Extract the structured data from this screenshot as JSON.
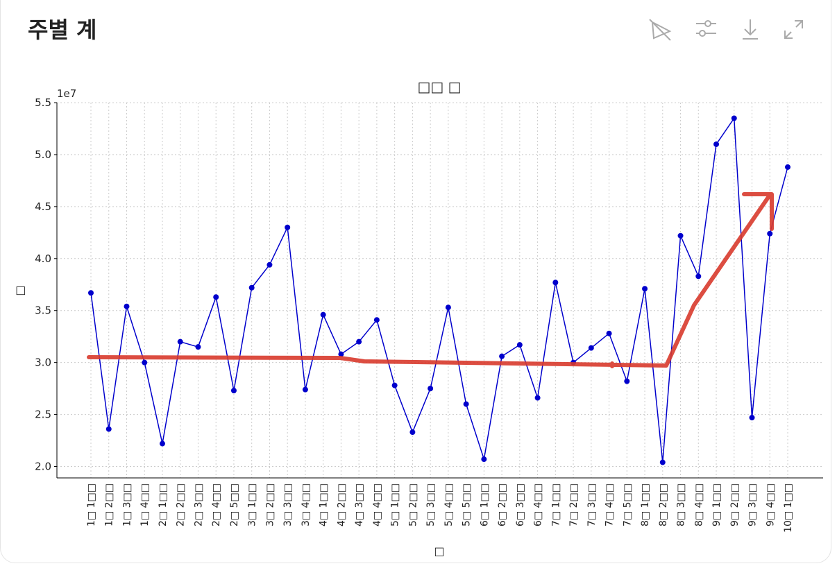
{
  "header": {
    "title": "주별 계"
  },
  "chart_data": {
    "type": "line",
    "title": "□□ □",
    "xlabel": "□",
    "ylabel": "□",
    "y_offset_text": "1e7",
    "categories": [
      "1□ 1□□",
      "1□ 2□□",
      "1□ 3□□",
      "1□ 4□□",
      "2□ 1□□",
      "2□ 2□□",
      "2□ 3□□",
      "2□ 4□□",
      "2□ 5□□",
      "3□ 1□□",
      "3□ 2□□",
      "3□ 3□□",
      "3□ 4□□",
      "4□ 1□□",
      "4□ 2□□",
      "4□ 3□□",
      "4□ 4□□",
      "5□ 1□□",
      "5□ 2□□",
      "5□ 3□□",
      "5□ 4□□",
      "5□ 5□□",
      "6□ 1□□",
      "6□ 2□□",
      "6□ 3□□",
      "6□ 4□□",
      "7□ 1□□",
      "7□ 2□□",
      "7□ 3□□",
      "7□ 4□□",
      "7□ 5□□",
      "8□ 1□□",
      "8□ 2□□",
      "8□ 3□□",
      "8□ 4□□",
      "9□ 1□□",
      "9□ 2□□",
      "9□ 3□□",
      "9□ 4□□",
      "10□ 1□□"
    ],
    "series": [
      {
        "color": "#0000cc",
        "values": [
          36700000,
          23600000,
          35400000,
          30000000,
          22200000,
          32000000,
          31500000,
          36300000,
          27300000,
          37200000,
          39400000,
          43000000,
          27400000,
          34600000,
          30800000,
          32000000,
          34100000,
          27800000,
          23300000,
          27500000,
          35300000,
          26000000,
          20700000,
          30600000,
          31700000,
          26600000,
          37700000,
          30000000,
          31400000,
          32800000,
          28200000,
          37100000,
          20400000,
          42200000,
          38300000,
          51000000,
          53500000,
          24700000,
          42400000,
          48800000
        ]
      }
    ],
    "ylim": [
      18900000,
      55000000
    ],
    "yticks": [
      {
        "value": 20000000,
        "label": "2.0"
      },
      {
        "value": 25000000,
        "label": "2.5"
      },
      {
        "value": 30000000,
        "label": "3.0"
      },
      {
        "value": 35000000,
        "label": "3.5"
      },
      {
        "value": 40000000,
        "label": "4.0"
      },
      {
        "value": 45000000,
        "label": "4.5"
      },
      {
        "value": 50000000,
        "label": "5.0"
      },
      {
        "value": 55000000,
        "label": "5.5"
      }
    ],
    "grid": true
  }
}
